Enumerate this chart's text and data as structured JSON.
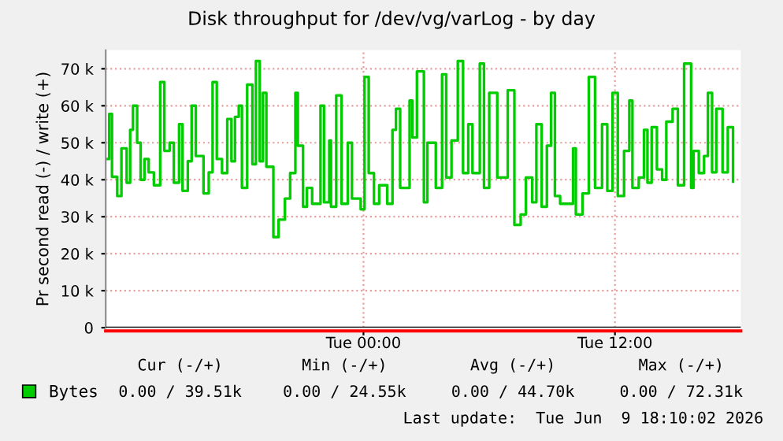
{
  "chart_data": {
    "type": "step",
    "title": "Disk throughput for /dev/vg/varLog - by day",
    "ylabel": "Pr second read (-) / write (+)",
    "x": [
      "2026-06-08T11:45",
      "2026-06-08T11:52",
      "2026-06-08T12:00",
      "2026-06-08T12:15",
      "2026-06-08T12:27",
      "2026-06-08T12:42",
      "2026-06-08T12:52",
      "2026-06-08T13:00",
      "2026-06-08T13:12",
      "2026-06-08T13:22",
      "2026-06-08T13:33",
      "2026-06-08T13:45",
      "2026-06-08T14:00",
      "2026-06-08T14:18",
      "2026-06-08T14:30",
      "2026-06-08T14:45",
      "2026-06-08T14:57",
      "2026-06-08T15:12",
      "2026-06-08T15:22",
      "2026-06-08T15:37",
      "2026-06-08T15:48",
      "2026-06-08T16:00",
      "2026-06-08T16:22",
      "2026-06-08T16:37",
      "2026-06-08T16:48",
      "2026-06-08T17:00",
      "2026-06-08T17:15",
      "2026-06-08T17:30",
      "2026-06-08T17:42",
      "2026-06-08T17:52",
      "2026-06-08T18:03",
      "2026-06-08T18:12",
      "2026-06-08T18:27",
      "2026-06-08T18:42",
      "2026-06-08T18:52",
      "2026-06-08T19:03",
      "2026-06-08T19:12",
      "2026-06-08T19:22",
      "2026-06-08T19:42",
      "2026-06-08T19:57",
      "2026-06-08T20:15",
      "2026-06-08T20:30",
      "2026-06-08T20:45",
      "2026-06-08T20:52",
      "2026-06-08T21:07",
      "2026-06-08T21:18",
      "2026-06-08T21:33",
      "2026-06-08T21:57",
      "2026-06-08T22:07",
      "2026-06-08T22:22",
      "2026-06-08T22:27",
      "2026-06-08T22:42",
      "2026-06-08T22:57",
      "2026-06-08T23:15",
      "2026-06-08T23:27",
      "2026-06-08T23:52",
      "2026-06-09T00:03",
      "2026-06-09T00:15",
      "2026-06-09T00:30",
      "2026-06-09T00:45",
      "2026-06-09T01:08",
      "2026-06-09T01:23",
      "2026-06-09T01:33",
      "2026-06-09T01:45",
      "2026-06-09T02:12",
      "2026-06-09T02:20",
      "2026-06-09T02:33",
      "2026-06-09T02:53",
      "2026-06-09T03:03",
      "2026-06-09T03:27",
      "2026-06-09T03:45",
      "2026-06-09T03:57",
      "2026-06-09T04:12",
      "2026-06-09T04:30",
      "2026-06-09T04:45",
      "2026-06-09T05:00",
      "2026-06-09T05:12",
      "2026-06-09T05:33",
      "2026-06-09T05:45",
      "2026-06-09T06:00",
      "2026-06-09T06:23",
      "2026-06-09T06:53",
      "2026-06-09T07:12",
      "2026-06-09T07:30",
      "2026-06-09T07:45",
      "2026-06-09T08:03",
      "2026-06-09T08:15",
      "2026-06-09T08:30",
      "2026-06-09T08:45",
      "2026-06-09T08:57",
      "2026-06-09T09:08",
      "2026-06-09T09:23",
      "2026-06-09T09:45",
      "2026-06-09T10:00",
      "2026-06-09T10:08",
      "2026-06-09T10:27",
      "2026-06-09T10:45",
      "2026-06-09T11:03",
      "2026-06-09T11:23",
      "2026-06-09T11:38",
      "2026-06-09T11:53",
      "2026-06-09T12:08",
      "2026-06-09T12:26",
      "2026-06-09T12:41",
      "2026-06-09T12:50",
      "2026-06-09T13:08",
      "2026-06-09T13:23",
      "2026-06-09T13:33",
      "2026-06-09T13:45",
      "2026-06-09T14:00",
      "2026-06-09T14:15",
      "2026-06-09T14:27",
      "2026-06-09T14:45",
      "2026-06-09T15:00",
      "2026-06-09T15:18",
      "2026-06-09T15:38",
      "2026-06-09T15:45",
      "2026-06-09T16:00",
      "2026-06-09T16:15",
      "2026-06-09T16:26",
      "2026-06-09T16:38",
      "2026-06-09T16:50",
      "2026-06-09T17:08",
      "2026-06-09T17:23",
      "2026-06-09T17:38"
    ],
    "series": [
      {
        "name": "Bytes",
        "color": "#00cc00",
        "values": [
          45600,
          57800,
          40800,
          35600,
          48500,
          39200,
          53500,
          60000,
          50000,
          40000,
          45600,
          42000,
          38500,
          66400,
          47800,
          50000,
          39200,
          55000,
          37000,
          45000,
          60000,
          46400,
          36300,
          42000,
          66400,
          45600,
          41800,
          56400,
          45000,
          57000,
          60000,
          37800,
          65700,
          44200,
          72100,
          45000,
          63500,
          43500,
          24500,
          29200,
          34900,
          41800,
          63500,
          49200,
          32700,
          37800,
          33500,
          60000,
          33900,
          50600,
          32700,
          62800,
          33500,
          50000,
          34900,
          32000,
          67800,
          41800,
          33500,
          38500,
          33500,
          53500,
          59200,
          37800,
          61400,
          51400,
          69300,
          33900,
          50000,
          37800,
          68500,
          40600,
          50600,
          72100,
          41800,
          55000,
          41800,
          71400,
          37800,
          63500,
          40600,
          64200,
          27800,
          30600,
          40600,
          33900,
          55000,
          32700,
          49200,
          63500,
          35600,
          33500,
          33500,
          48500,
          30600,
          36300,
          67800,
          37800,
          55000,
          37000,
          63500,
          35600,
          47800,
          61400,
          37800,
          40600,
          53500,
          39200,
          54200,
          42800,
          40000,
          55700,
          59200,
          38500,
          71400,
          37800,
          47800,
          41800,
          46400,
          63500,
          42000,
          59200,
          42000,
          54200,
          39500
        ]
      }
    ],
    "xlim": [
      "2026-06-08T11:42",
      "2026-06-09T18:00"
    ],
    "xticks": [
      {
        "value": "2026-06-09T00:00",
        "label": "Tue 00:00"
      },
      {
        "value": "2026-06-09T12:00",
        "label": "Tue 12:00"
      }
    ],
    "ylim": [
      0,
      75000
    ],
    "yticks": [
      0,
      {
        "value": 10000,
        "label": "10 k"
      },
      {
        "value": 20000,
        "label": "20 k"
      },
      {
        "value": 30000,
        "label": "30 k"
      },
      {
        "value": 40000,
        "label": "40 k"
      },
      {
        "value": 50000,
        "label": "50 k"
      },
      {
        "value": 60000,
        "label": "60 k"
      },
      {
        "value": 70000,
        "label": "70 k"
      }
    ],
    "ref_lines": [
      {
        "axis": "y",
        "value": 0,
        "color": "#000000"
      }
    ],
    "grid": true,
    "legend": "bottom left",
    "annotations": [
      "Cur (-/+)",
      "Min (-/+)",
      "Avg (-/+)",
      "Max (-/+)",
      "0.00 / 39.51k",
      "0.00 / 24.55k",
      "0.00 / 44.70k",
      "0.00 / 72.31k",
      "Last update:  Tue Jun  9 18:10:02 2026"
    ]
  }
}
